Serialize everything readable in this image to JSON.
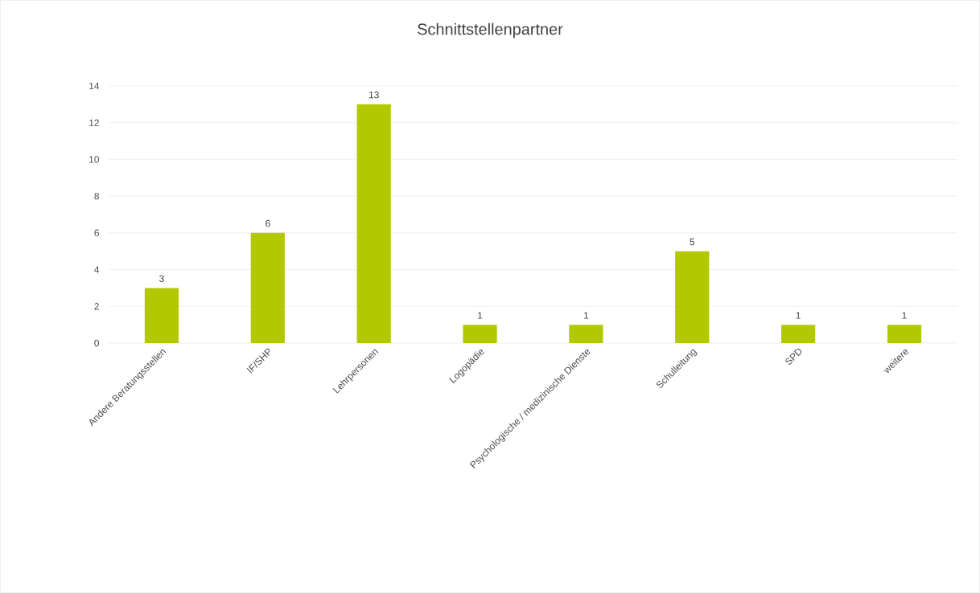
{
  "chart_data": {
    "type": "bar",
    "title": "Schnittstellenpartner",
    "categories": [
      "Andere Beratungsstellen",
      "IF/SHP",
      "Lehrpersonen",
      "Logopädie",
      "Psychologische / medizinische Dienste",
      "Schulleitung",
      "SPD",
      "weitere"
    ],
    "values": [
      3,
      6,
      13,
      1,
      1,
      5,
      1,
      1
    ],
    "color": "#b2c800",
    "ylim": [
      0,
      14
    ],
    "yticks": [
      0,
      2,
      4,
      6,
      8,
      10,
      12,
      14
    ],
    "grid": "y",
    "data_labels": true
  }
}
